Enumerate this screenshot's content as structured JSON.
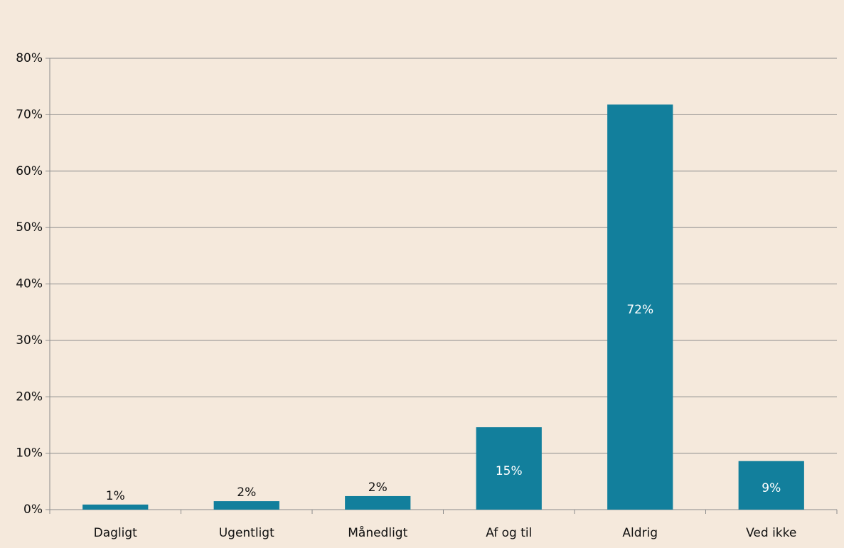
{
  "chart_data": {
    "type": "bar",
    "categories": [
      "Dagligt",
      "Ugentligt",
      "Månedligt",
      "Af og til",
      "Aldrig",
      "Ved ikke"
    ],
    "values": [
      0.9,
      1.5,
      2.4,
      14.6,
      71.8,
      8.6
    ],
    "value_labels": [
      "1%",
      "2%",
      "2%",
      "15%",
      "72%",
      "9%"
    ],
    "color": "#127f9c",
    "ylim": [
      0,
      80
    ],
    "yticks": [
      {
        "value": 0,
        "label": "0%"
      },
      {
        "value": 10,
        "label": "10%"
      },
      {
        "value": 20,
        "label": "20%"
      },
      {
        "value": 30,
        "label": "30%"
      },
      {
        "value": 40,
        "label": "40%"
      },
      {
        "value": 50,
        "label": "50%"
      },
      {
        "value": 60,
        "label": "60%"
      },
      {
        "value": 70,
        "label": "70%"
      },
      {
        "value": 80,
        "label": "80%"
      }
    ],
    "grid": true
  }
}
